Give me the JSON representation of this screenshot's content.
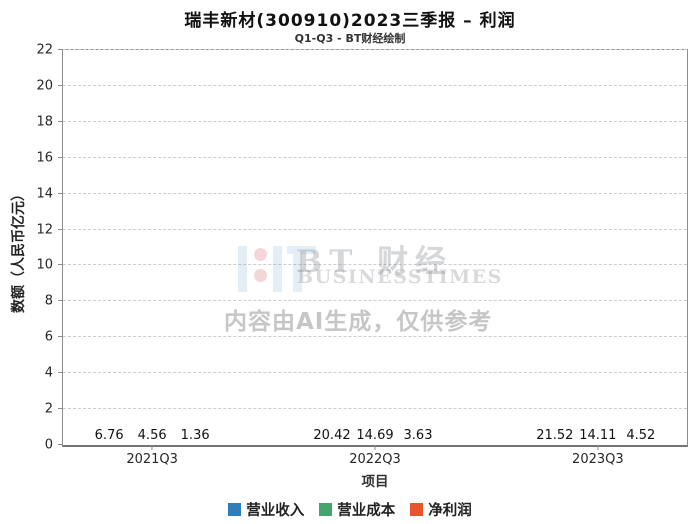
{
  "header": {
    "title": "瑞丰新材(300910)2023三季报 – 利润",
    "subtitle": "Q1-Q3 - BT财经绘制"
  },
  "chart_data": {
    "type": "bar",
    "title": "瑞丰新材(300910)2023三季报 – 利润",
    "subtitle": "Q1-Q3 - BT财经绘制",
    "categories": [
      "2021Q3",
      "2022Q3",
      "2023Q3"
    ],
    "series": [
      {
        "name": "营业收入",
        "color": "#2f7eba",
        "values": [
          6.76,
          20.42,
          21.52
        ]
      },
      {
        "name": "营业成本",
        "color": "#44a56f",
        "values": [
          4.56,
          14.69,
          14.11
        ]
      },
      {
        "name": "净利润",
        "color": "#e8542d",
        "values": [
          1.36,
          3.63,
          4.52
        ]
      }
    ],
    "xlabel": "项目",
    "ylabel": "数额（人民币亿元）",
    "ylim": [
      0,
      22
    ],
    "ytick_step": 2,
    "grid": true,
    "gridline_style": "dashed",
    "legend_position": "bottom",
    "value_labels": true
  },
  "watermark": {
    "brand": "BT 财经",
    "brand_sub": "BUSINESSTIMES",
    "ai_note": "内容由AI生成，仅供参考"
  }
}
